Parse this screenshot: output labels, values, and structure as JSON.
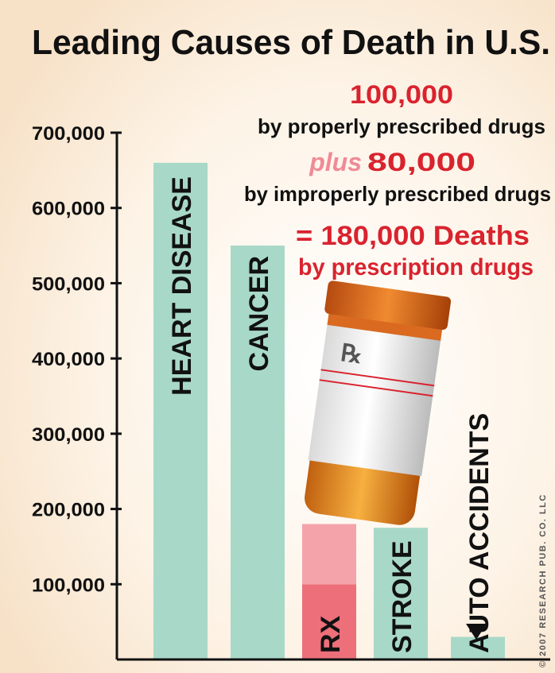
{
  "chart_data": {
    "type": "bar",
    "title": "Leading Causes of Death in U.S.",
    "categories": [
      "HEART DISEASE",
      "CANCER",
      "RX",
      "STROKE",
      "AUTO ACCIDENTS"
    ],
    "series": [
      {
        "color": "#a8d8c8",
        "values": [
          660000,
          550000,
          null,
          175000,
          30000
        ]
      },
      {
        "color": "#ec6f7a",
        "values": [
          null,
          null,
          100000,
          null,
          null
        ]
      },
      {
        "color": "#f4a3ab",
        "values": [
          null,
          null,
          80000,
          null,
          null
        ]
      }
    ],
    "ylim": [
      0,
      700000
    ],
    "yticks": [
      {
        "value": 100000,
        "label": "100,000"
      },
      {
        "value": 200000,
        "label": "200,000"
      },
      {
        "value": 300000,
        "label": "300,000"
      },
      {
        "value": 400000,
        "label": "400,000"
      },
      {
        "value": 500000,
        "label": "500,000"
      },
      {
        "value": 600000,
        "label": "600,000"
      },
      {
        "value": 700000,
        "label": "700,000"
      }
    ],
    "annotations": {
      "proper_value": "100,000",
      "proper_text": "by properly prescribed drugs",
      "plus": "plus",
      "improper_value": "80,000",
      "improper_text": "by improperly prescribed drugs",
      "total": "= 180,000 Deaths",
      "total_text": "by prescription drugs",
      "rx_symbol": "℞"
    },
    "credit": "© 2007 RESEARCH PUB. CO. LLC"
  }
}
